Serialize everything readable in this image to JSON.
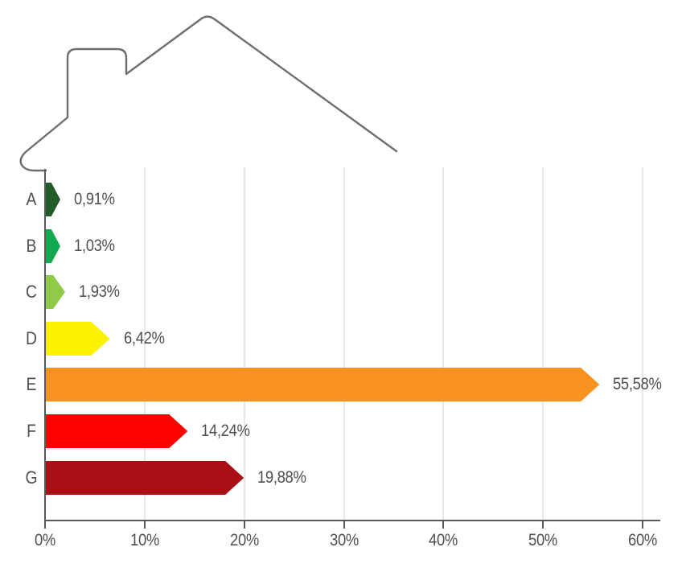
{
  "chart_data": {
    "type": "bar",
    "orientation": "horizontal",
    "title": "",
    "xlabel": "",
    "ylabel": "",
    "categories": [
      "A",
      "B",
      "C",
      "D",
      "E",
      "F",
      "G"
    ],
    "values": [
      0.91,
      1.03,
      1.93,
      6.42,
      55.58,
      14.24,
      19.88
    ],
    "value_labels": [
      "0,91%",
      "1,03%",
      "1,93%",
      "6,42%",
      "55,58%",
      "14,24%",
      "19,88%"
    ],
    "bar_colors": [
      "#215c28",
      "#0fa950",
      "#8fca48",
      "#fdf300",
      "#f7931e",
      "#fd0100",
      "#a90f15"
    ],
    "x_ticks": [
      0,
      10,
      20,
      30,
      40,
      50,
      60
    ],
    "x_tick_labels": [
      "0%",
      "10%",
      "20%",
      "30%",
      "40%",
      "50%",
      "60%"
    ],
    "xlim": [
      0,
      60
    ],
    "grid": true,
    "legend": false,
    "decoration": "house-outline"
  },
  "colors": {
    "background": "#ffffff",
    "axis": "#58595b",
    "grid": "#e8e9ea",
    "text": "#4f5052",
    "house_outline": "#6d6e71"
  }
}
